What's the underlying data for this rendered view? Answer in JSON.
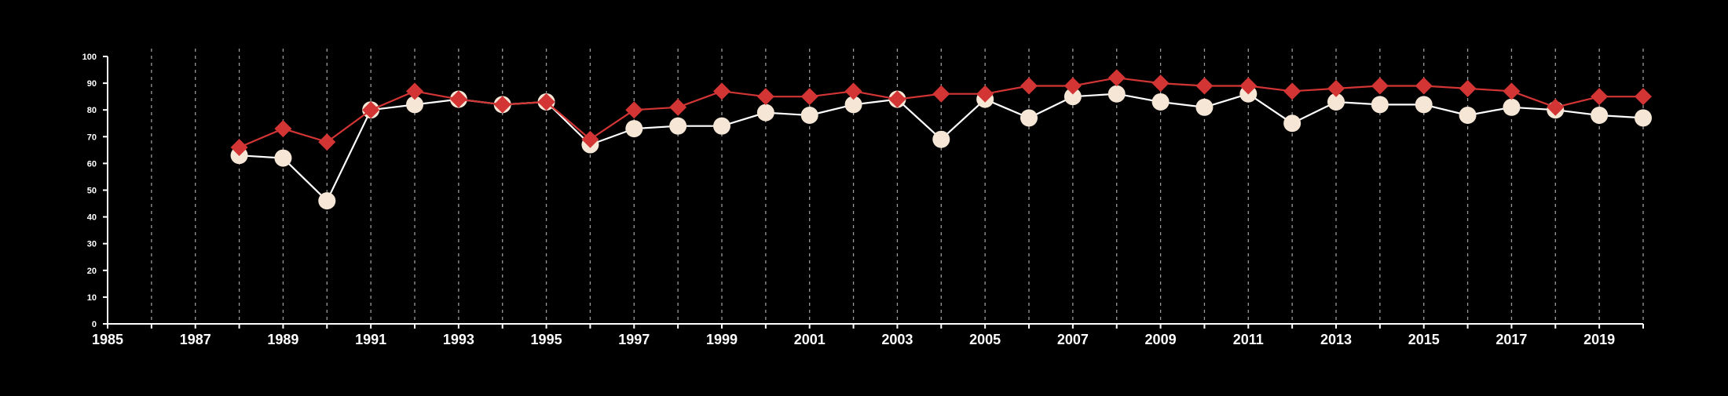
{
  "chart_data": {
    "type": "line",
    "title": "",
    "xlabel": "",
    "ylabel": "",
    "xlim": [
      1985,
      2020
    ],
    "ylim": [
      0,
      100
    ],
    "yticks": [
      0,
      10,
      20,
      30,
      40,
      50,
      60,
      70,
      80,
      90,
      100
    ],
    "xtick_labels": [
      1985,
      1987,
      1989,
      1991,
      1993,
      1995,
      1997,
      1999,
      2001,
      2003,
      2005,
      2007,
      2009,
      2011,
      2013,
      2015,
      2017,
      2019
    ],
    "vertical_grid": "dashed, every year",
    "legend": "none",
    "background_color": "#000000",
    "x": [
      1988,
      1989,
      1990,
      1991,
      1992,
      1993,
      1994,
      1995,
      1996,
      1997,
      1998,
      1999,
      2000,
      2001,
      2002,
      2003,
      2004,
      2005,
      2006,
      2007,
      2008,
      2009,
      2010,
      2011,
      2012,
      2013,
      2014,
      2015,
      2016,
      2017,
      2018,
      2019,
      2020
    ],
    "series": [
      {
        "marker": "circle",
        "line_color": "#ffffff",
        "marker_color": "#f5e6d6",
        "values": [
          63,
          62,
          46,
          80,
          82,
          84,
          82,
          83,
          67,
          73,
          74,
          74,
          79,
          78,
          82,
          84,
          69,
          84,
          77,
          85,
          86,
          83,
          81,
          86,
          75,
          83,
          82,
          82,
          78,
          81,
          80,
          78,
          77
        ]
      },
      {
        "marker": "diamond",
        "line_color": "#d33535",
        "marker_color": "#d33535",
        "values": [
          66,
          73,
          68,
          80,
          87,
          84,
          82,
          83,
          69,
          80,
          81,
          87,
          85,
          85,
          87,
          84,
          86,
          86,
          89,
          89,
          92,
          90,
          89,
          89,
          87,
          88,
          89,
          89,
          88,
          87,
          81,
          85,
          85
        ]
      }
    ]
  }
}
